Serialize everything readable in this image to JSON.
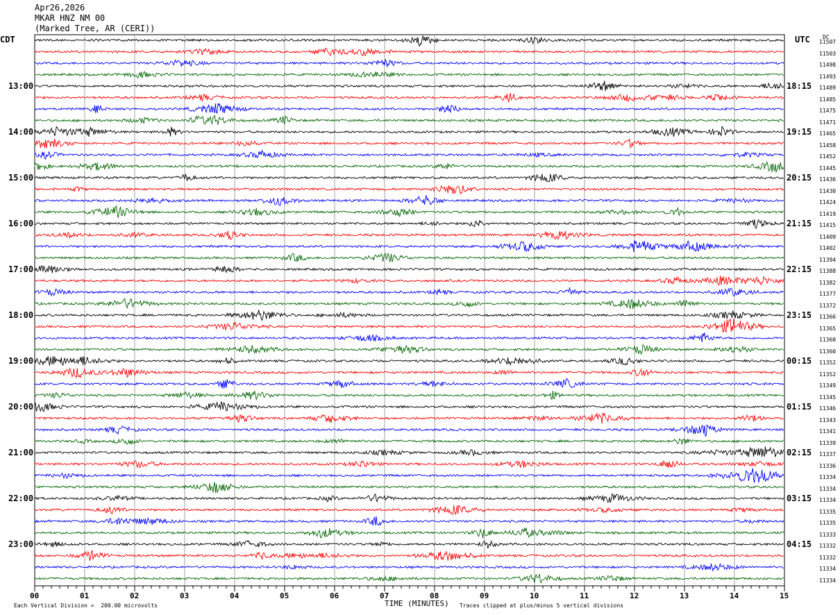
{
  "header": {
    "date": "Apr26,2026",
    "station": "MKAR HNZ NM 00",
    "location": "(Marked Tree, AR (CERI))"
  },
  "axes": {
    "left_zone": "CDT",
    "right_zone": "UTC",
    "dc_header": "DC"
  },
  "footer": {
    "vertical_division": "Each Vertical Division =  200.00 microvolts",
    "xlabel": "TIME (MINUTES)",
    "clip_note": "Traces clipped at plus/minus 5 vertical divisions"
  },
  "colors": [
    "#000000",
    "#ff0000",
    "#0000ff",
    "#006400"
  ],
  "chart_data": {
    "type": "line",
    "title": "MKAR HNZ NM 00",
    "xlabel": "TIME (MINUTES)",
    "xlim": [
      0,
      15
    ],
    "x_ticks": [
      "00",
      "01",
      "02",
      "03",
      "04",
      "05",
      "06",
      "07",
      "08",
      "09",
      "10",
      "11",
      "12",
      "13",
      "14",
      "15"
    ],
    "left_labels": [
      "13:00",
      "14:00",
      "15:00",
      "16:00",
      "17:00",
      "18:00",
      "19:00",
      "20:00",
      "21:00",
      "22:00",
      "23:00"
    ],
    "right_labels": [
      "18:15",
      "19:15",
      "20:15",
      "21:15",
      "22:15",
      "23:15",
      "00:15",
      "01:15",
      "02:15",
      "03:15",
      "04:15"
    ],
    "dc_values": [
      "11507",
      "11503",
      "11498",
      "11493",
      "11489",
      "11485",
      "11475",
      "11471",
      "11465",
      "11458",
      "11452",
      "11445",
      "11436",
      "11430",
      "11424",
      "11419",
      "11415",
      "11409",
      "11402",
      "11394",
      "11388",
      "11382",
      "11377",
      "11372",
      "11366",
      "11365",
      "11360",
      "11360",
      "11352",
      "11352",
      "11349",
      "11345",
      "11346",
      "11343",
      "11341",
      "11339",
      "11337",
      "11336",
      "11334",
      "11334",
      "11334",
      "11335",
      "11335",
      "11333",
      "11332",
      "11332",
      "11334",
      "11334"
    ],
    "trace_count": 48,
    "last_trace_end_minute": 15
  }
}
